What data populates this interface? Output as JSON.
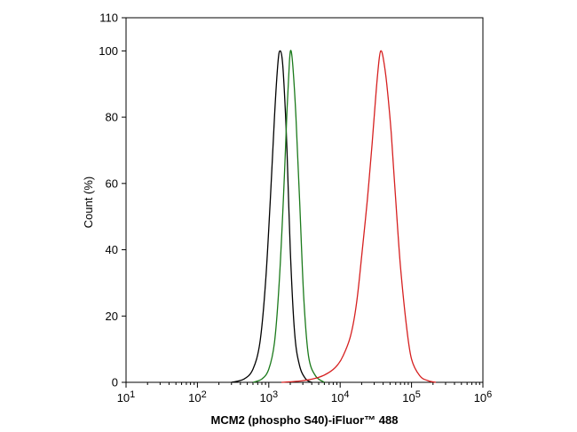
{
  "chart_data": {
    "type": "line",
    "title": "",
    "xlabel": "MCM2 (phospho S40)-iFluor™ 488",
    "ylabel": "Count  (%)",
    "x_scale": "log",
    "xlim": [
      10,
      1000000
    ],
    "ylim": [
      0,
      110
    ],
    "x_ticks": [
      {
        "value": 10,
        "base": "10",
        "exp": "1"
      },
      {
        "value": 100,
        "base": "10",
        "exp": "2"
      },
      {
        "value": 1000,
        "base": "10",
        "exp": "3"
      },
      {
        "value": 10000,
        "base": "10",
        "exp": "4"
      },
      {
        "value": 100000,
        "base": "10",
        "exp": "5"
      },
      {
        "value": 1000000,
        "base": "10",
        "exp": "6"
      }
    ],
    "y_ticks": [
      0,
      20,
      40,
      60,
      80,
      100,
      110
    ],
    "grid": false,
    "legend": "none",
    "series": [
      {
        "color": "#000000",
        "x": [
          300,
          450,
          600,
          750,
          900,
          1050,
          1200,
          1350,
          1450,
          1550,
          1650,
          1800,
          2000,
          2300,
          2700,
          3300,
          4000
        ],
        "y": [
          0,
          1,
          4,
          12,
          30,
          55,
          80,
          97,
          100,
          97,
          88,
          70,
          40,
          15,
          5,
          1,
          0
        ]
      },
      {
        "color": "#1b7a1b",
        "x": [
          600,
          800,
          1000,
          1200,
          1400,
          1600,
          1800,
          1950,
          2050,
          2200,
          2400,
          2700,
          3100,
          3600,
          4500,
          6000
        ],
        "y": [
          0,
          1,
          4,
          12,
          30,
          55,
          82,
          97,
          100,
          94,
          80,
          55,
          25,
          8,
          2,
          0
        ]
      },
      {
        "color": "#d62020",
        "x": [
          1500,
          3000,
          5000,
          7000,
          9000,
          11000,
          14000,
          17000,
          20000,
          24000,
          28000,
          32000,
          35000,
          37000,
          40000,
          45000,
          52000,
          60000,
          70000,
          85000,
          100000,
          130000,
          170000,
          220000
        ],
        "y": [
          0,
          0.5,
          1.5,
          3,
          5,
          8,
          14,
          24,
          38,
          55,
          72,
          88,
          97,
          100,
          98,
          90,
          75,
          55,
          35,
          17,
          7,
          2,
          0.5,
          0
        ]
      }
    ]
  }
}
